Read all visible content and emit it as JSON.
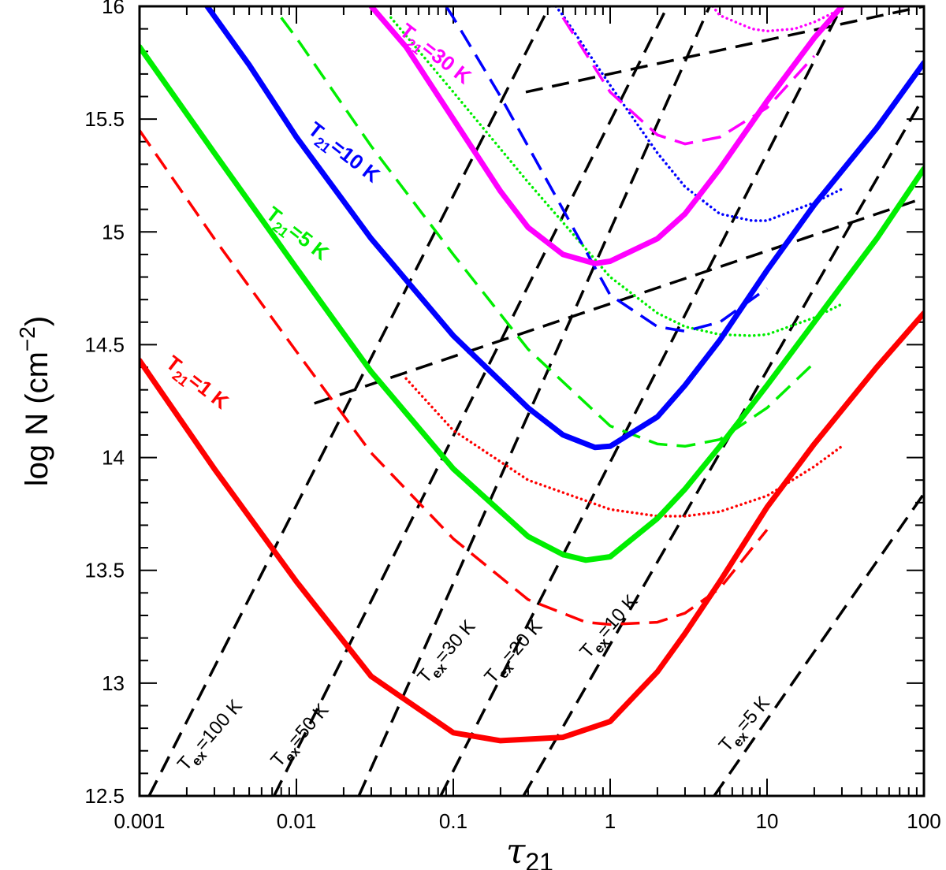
{
  "chart_data": {
    "type": "line",
    "title": "",
    "xlabel": "τ",
    "xlabel_sub": "21",
    "ylabel": "log N  (cm",
    "ylabel_sup": "−2",
    "ylabel_close": ")",
    "xscale": "log",
    "xlim": [
      0.001,
      100
    ],
    "ylim": [
      12.5,
      16
    ],
    "x_ticks": [
      {
        "value": 0.001,
        "label": "0.001"
      },
      {
        "value": 0.01,
        "label": "0.01"
      },
      {
        "value": 0.1,
        "label": "0.1"
      },
      {
        "value": 1,
        "label": "1"
      },
      {
        "value": 10,
        "label": "10"
      },
      {
        "value": 100,
        "label": "100"
      }
    ],
    "y_ticks": [
      {
        "value": 12.5,
        "label": "12.5"
      },
      {
        "value": 13,
        "label": "13"
      },
      {
        "value": 13.5,
        "label": "13.5"
      },
      {
        "value": 14,
        "label": "14"
      },
      {
        "value": 14.5,
        "label": "14.5"
      },
      {
        "value": 15,
        "label": "15"
      },
      {
        "value": 15.5,
        "label": "15.5"
      },
      {
        "value": 16,
        "label": "16"
      }
    ],
    "curve_groups": [
      {
        "name": "T21 = 1 K",
        "T21": 1,
        "color": "#ff0000",
        "label": {
          "T": "T",
          "sub": "21",
          "rest": "=1 K"
        },
        "series": [
          {
            "style": "solid",
            "x": [
              0.001,
              0.003,
              0.01,
              0.03,
              0.1,
              0.2,
              0.5,
              1,
              2,
              3,
              5,
              10,
              20,
              50,
              100
            ],
            "y": [
              14.43,
              13.95,
              13.45,
              13.03,
              12.78,
              12.745,
              12.76,
              12.83,
              13.05,
              13.22,
              13.45,
              13.78,
              14.06,
              14.4,
              14.64
            ]
          },
          {
            "style": "dashed",
            "x": [
              0.001,
              0.003,
              0.01,
              0.03,
              0.1,
              0.3,
              0.7,
              1,
              2,
              3,
              5,
              10
            ],
            "y": [
              15.45,
              14.97,
              14.47,
              14.02,
              13.64,
              13.37,
              13.27,
              13.26,
              13.27,
              13.31,
              13.42,
              13.68
            ]
          },
          {
            "style": "dotted",
            "x": [
              0.05,
              0.1,
              0.3,
              1,
              2,
              3,
              5,
              10,
              20,
              30
            ],
            "y": [
              14.35,
              14.12,
              13.9,
              13.77,
              13.74,
              13.74,
              13.76,
              13.83,
              13.96,
              14.05
            ]
          }
        ]
      },
      {
        "name": "T21 = 5 K",
        "T21": 5,
        "color": "#00ee00",
        "label": {
          "T": "T",
          "sub": "21",
          "rest": "=5 K"
        },
        "series": [
          {
            "style": "solid",
            "x": [
              0.001,
              0.003,
              0.01,
              0.03,
              0.1,
              0.3,
              0.5,
              0.7,
              1,
              2,
              3,
              5,
              10,
              20,
              50,
              100
            ],
            "y": [
              15.82,
              15.35,
              14.84,
              14.38,
              13.95,
              13.65,
              13.57,
              13.545,
              13.56,
              13.73,
              13.86,
              14.05,
              14.32,
              14.6,
              14.97,
              15.28
            ]
          },
          {
            "style": "dashed",
            "x": [
              0.008,
              0.01,
              0.03,
              0.1,
              0.3,
              1,
              2,
              3,
              5,
              10,
              20
            ],
            "y": [
              15.95,
              15.86,
              15.38,
              14.9,
              14.48,
              14.14,
              14.06,
              14.05,
              14.08,
              14.22,
              14.42
            ]
          },
          {
            "style": "dotted",
            "x": [
              0.04,
              0.1,
              0.3,
              1,
              2,
              3,
              5,
              8,
              10,
              20,
              30
            ],
            "y": [
              15.95,
              15.62,
              15.22,
              14.8,
              14.64,
              14.58,
              14.545,
              14.54,
              14.545,
              14.62,
              14.68
            ]
          }
        ]
      },
      {
        "name": "T21 = 10 K",
        "T21": 10,
        "color": "#0000ff",
        "label": {
          "T": "T",
          "sub": "21",
          "rest": "=10 K"
        },
        "series": [
          {
            "style": "solid",
            "x": [
              0.0027,
              0.005,
              0.01,
              0.03,
              0.1,
              0.3,
              0.5,
              0.8,
              1,
              2,
              3,
              5,
              10,
              20,
              50,
              100
            ],
            "y": [
              16.0,
              15.74,
              15.42,
              14.97,
              14.54,
              14.22,
              14.1,
              14.045,
              14.05,
              14.18,
              14.32,
              14.52,
              14.83,
              15.12,
              15.46,
              15.75
            ]
          },
          {
            "style": "dashed",
            "x": [
              0.09,
              0.1,
              0.2,
              0.5,
              1,
              2,
              3,
              5,
              10
            ],
            "y": [
              16.0,
              15.95,
              15.6,
              15.1,
              14.72,
              14.58,
              14.56,
              14.6,
              14.75
            ]
          },
          {
            "style": "dotted",
            "x": [
              0.45,
              0.5,
              1,
              2,
              3,
              5,
              8,
              10,
              20,
              30
            ],
            "y": [
              16.0,
              15.96,
              15.65,
              15.35,
              15.2,
              15.08,
              15.05,
              15.05,
              15.13,
              15.19
            ]
          }
        ]
      },
      {
        "name": "T21 = 30 K",
        "T21": 30,
        "color": "#ff00ff",
        "label": {
          "T": "T",
          "sub": "21",
          "rest": "=30 K"
        },
        "series": [
          {
            "style": "solid",
            "x": [
              0.03,
              0.05,
              0.1,
              0.2,
              0.3,
              0.5,
              0.8,
              1,
              2,
              3,
              5,
              10,
              20,
              30
            ],
            "y": [
              16.0,
              15.82,
              15.5,
              15.18,
              15.02,
              14.9,
              14.86,
              14.87,
              14.97,
              15.08,
              15.28,
              15.58,
              15.86,
              16.0
            ]
          },
          {
            "style": "dashed",
            "x": [
              0.5,
              1,
              2,
              3,
              5,
              10,
              20
            ],
            "y": [
              15.95,
              15.62,
              15.43,
              15.39,
              15.42,
              15.55,
              15.78
            ]
          },
          {
            "style": "dotted",
            "x": [
              4.5,
              5,
              8,
              10,
              15,
              20,
              30
            ],
            "y": [
              16.0,
              15.96,
              15.9,
              15.89,
              15.9,
              15.93,
              15.99
            ]
          }
        ]
      }
    ],
    "tex_lines": [
      {
        "T": "T",
        "sub": "ex",
        "rest": "=100 K",
        "x": [
          0.00115,
          0.41
        ],
        "y": [
          12.5,
          16.0
        ]
      },
      {
        "T": "T",
        "sub": "ex",
        "rest": "=50 K",
        "x": [
          0.0072,
          2.32
        ],
        "y": [
          12.5,
          16.0
        ]
      },
      {
        "T": "T",
        "sub": "ex",
        "rest": "=30 K",
        "x": [
          0.025,
          4.3
        ],
        "y": [
          12.5,
          16.0
        ]
      },
      {
        "T": "T",
        "sub": "ex",
        "rest": "=20 K",
        "x": [
          0.083,
          30
        ],
        "y": [
          12.5,
          16.0
        ]
      },
      {
        "T": "T",
        "sub": "ex",
        "rest": "=10 K",
        "x": [
          0.28,
          100
        ],
        "y": [
          12.5,
          15.6
        ]
      },
      {
        "T": "T",
        "sub": "ex",
        "rest": "=5 K",
        "x": [
          4.6,
          100
        ],
        "y": [
          12.5,
          13.84
        ]
      }
    ],
    "extra_dashed_lines": [
      {
        "x": [
          0.013,
          100
        ],
        "y": [
          14.24,
          15.15
        ]
      },
      {
        "x": [
          0.29,
          100
        ],
        "y": [
          15.62,
          16.0
        ]
      }
    ]
  }
}
